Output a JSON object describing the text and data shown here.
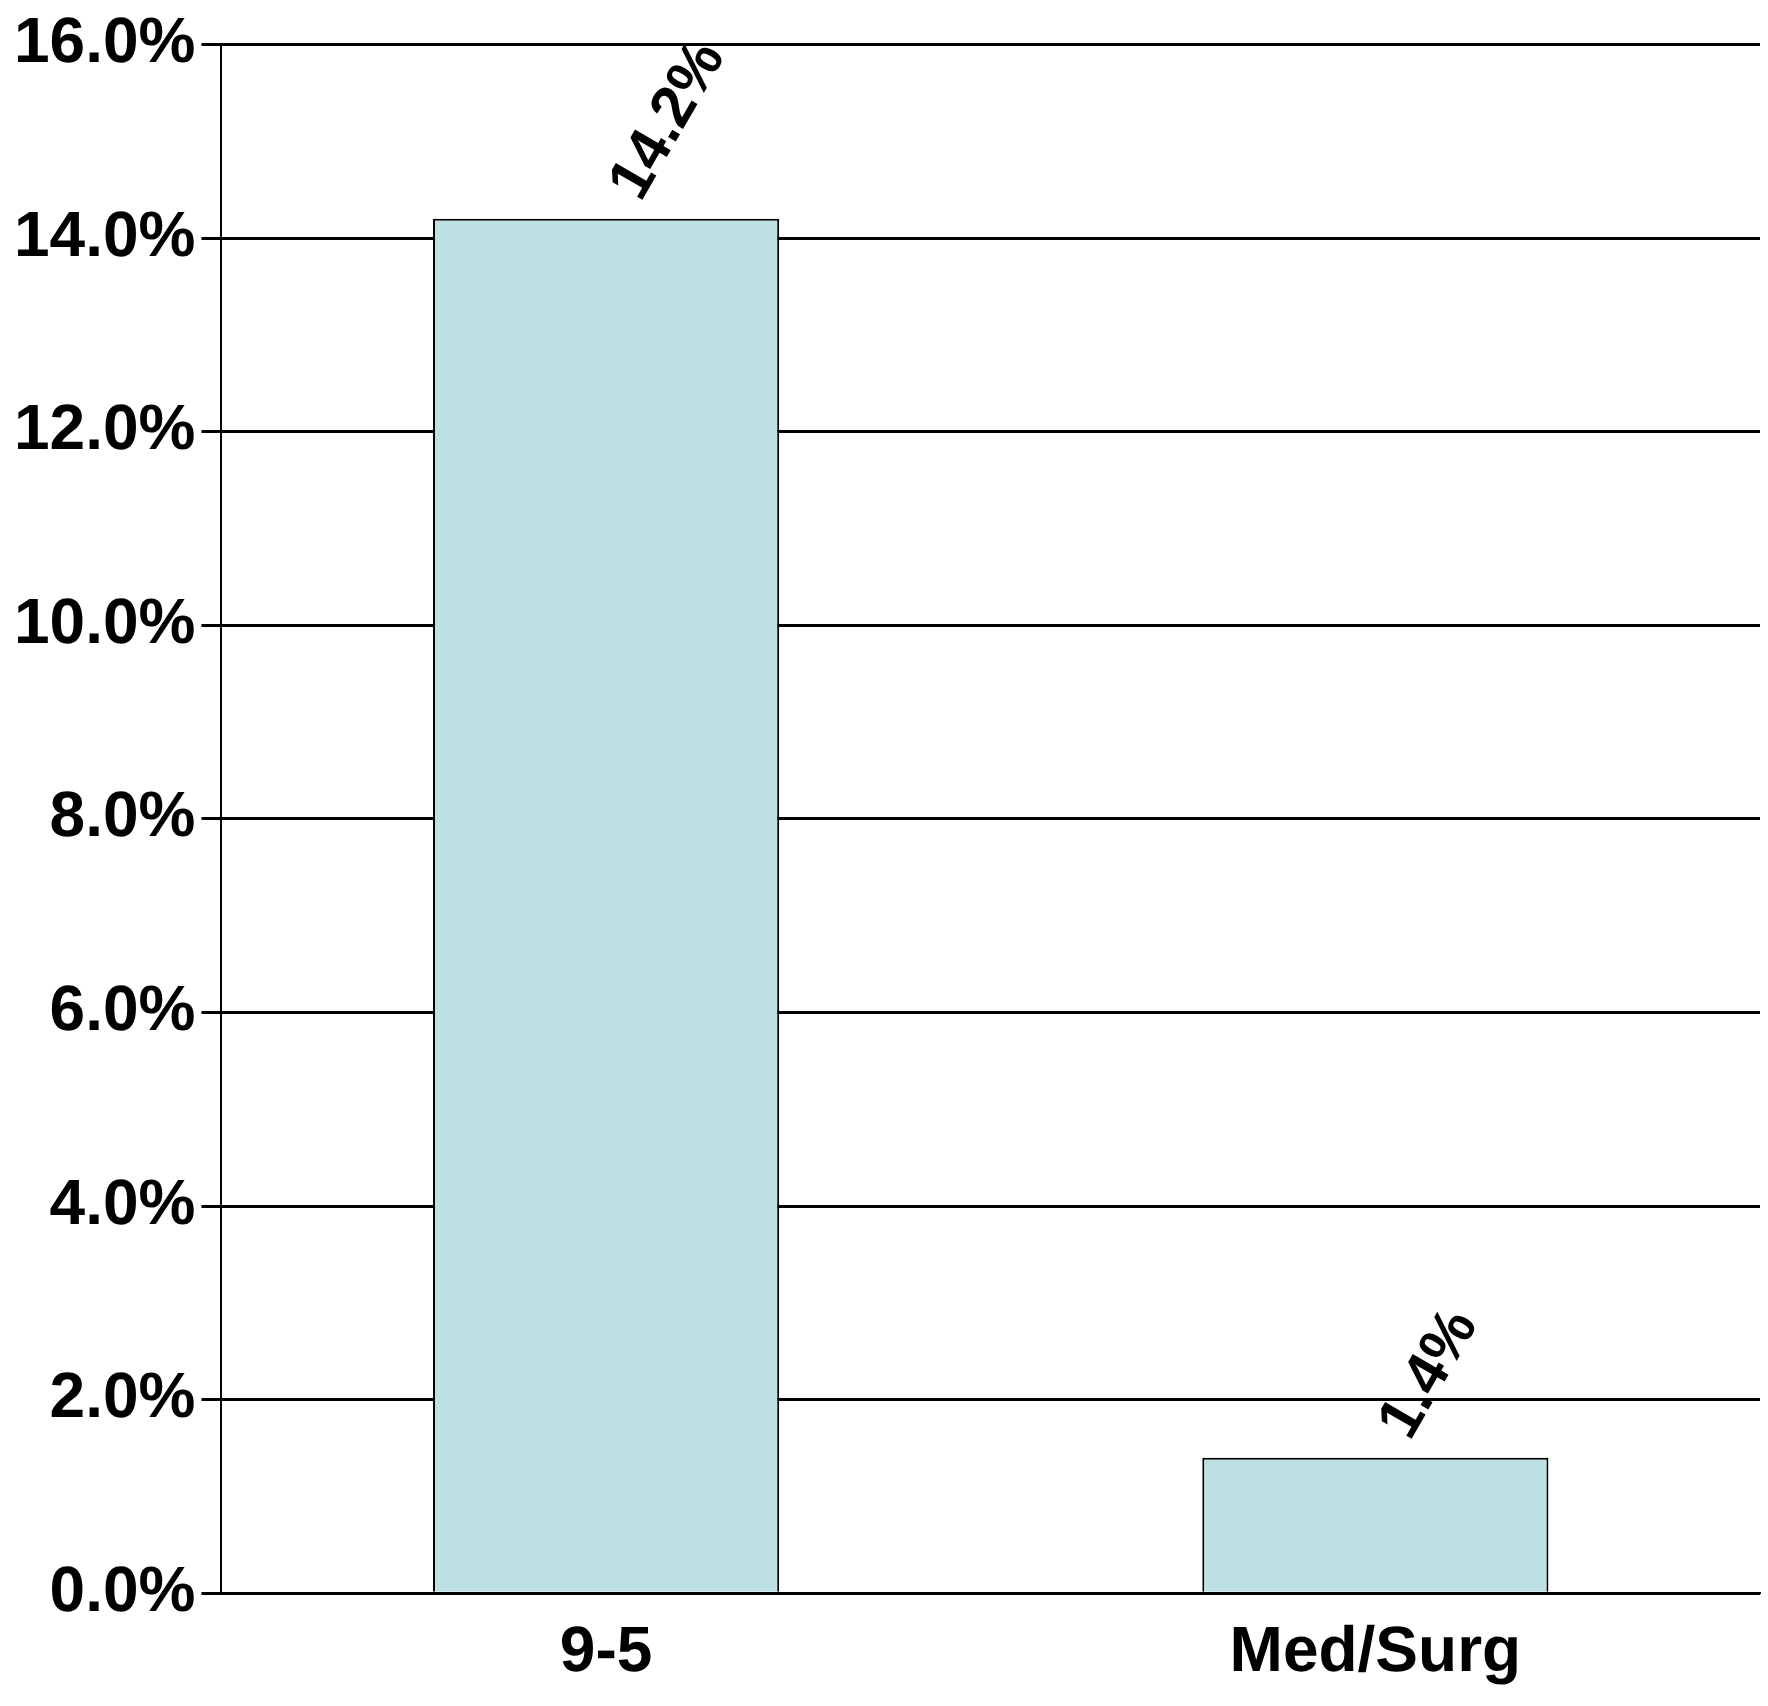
{
  "chart_data": {
    "type": "bar",
    "categories": [
      "9-5",
      "Med/Surg"
    ],
    "values": [
      14.2,
      1.4
    ],
    "color": "#bde0e3",
    "value_labels": [
      "14.2%",
      "1.4%"
    ],
    "ylim": [
      0,
      16
    ],
    "yticks": [
      {
        "value": 0,
        "label": "0.0%"
      },
      {
        "value": 2,
        "label": "2.0%"
      },
      {
        "value": 4,
        "label": "4.0%"
      },
      {
        "value": 6,
        "label": "6.0%"
      },
      {
        "value": 8,
        "label": "8.0%"
      },
      {
        "value": 10,
        "label": "10.0%"
      },
      {
        "value": 12,
        "label": "12.0%"
      },
      {
        "value": 14,
        "label": "14.0%"
      },
      {
        "value": 16,
        "label": "16.0%"
      }
    ],
    "grid": "y"
  }
}
